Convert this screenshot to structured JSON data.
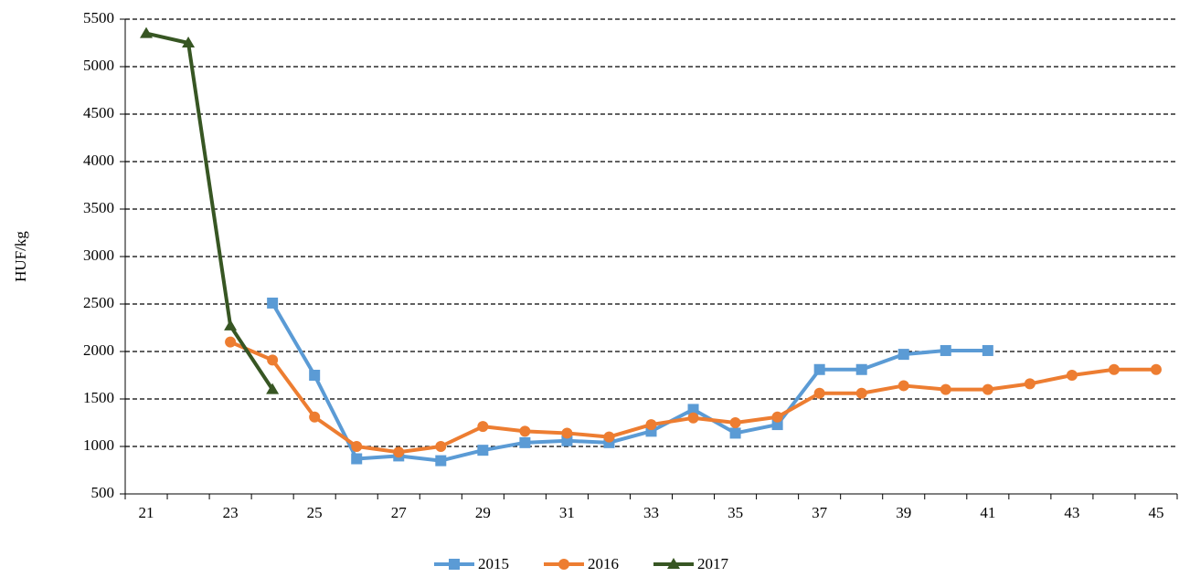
{
  "chart_data": {
    "type": "line",
    "y_label": "HUF/kg",
    "categories": [
      "21",
      null,
      "23",
      null,
      "25",
      null,
      "27",
      null,
      "29",
      null,
      "31",
      null,
      "33",
      null,
      "35",
      null,
      "37",
      null,
      "39",
      null,
      "41",
      null,
      "43",
      null,
      "45"
    ],
    "series": [
      {
        "name": "2015",
        "color": "#5b9bd5",
        "marker": "square",
        "values": [
          null,
          null,
          null,
          2510,
          1750,
          870,
          900,
          850,
          960,
          1040,
          1060,
          1040,
          1160,
          1390,
          1140,
          1230,
          1810,
          1810,
          1970,
          2010,
          2010,
          null,
          null,
          null,
          null
        ]
      },
      {
        "name": "2016",
        "color": "#ed7d31",
        "marker": "circle",
        "values": [
          null,
          null,
          2100,
          1910,
          1310,
          1000,
          940,
          1000,
          1210,
          1160,
          1140,
          1100,
          1230,
          1300,
          1250,
          1310,
          1560,
          1560,
          1640,
          1600,
          1600,
          1660,
          1750,
          1810,
          1810
        ]
      },
      {
        "name": "2017",
        "color": "#375623",
        "marker": "triangle",
        "values": [
          5350,
          5250,
          2270,
          1600,
          null,
          null,
          null,
          null,
          null,
          null,
          null,
          null,
          null,
          null,
          null,
          null,
          null,
          null,
          null,
          null,
          null,
          null,
          null,
          null,
          null
        ]
      }
    ],
    "ylim": [
      500,
      5500
    ],
    "yticks": [
      500,
      1000,
      1500,
      2000,
      2500,
      3000,
      3500,
      4000,
      4500,
      5000,
      5500
    ],
    "grid": true,
    "legend": "bottom"
  }
}
